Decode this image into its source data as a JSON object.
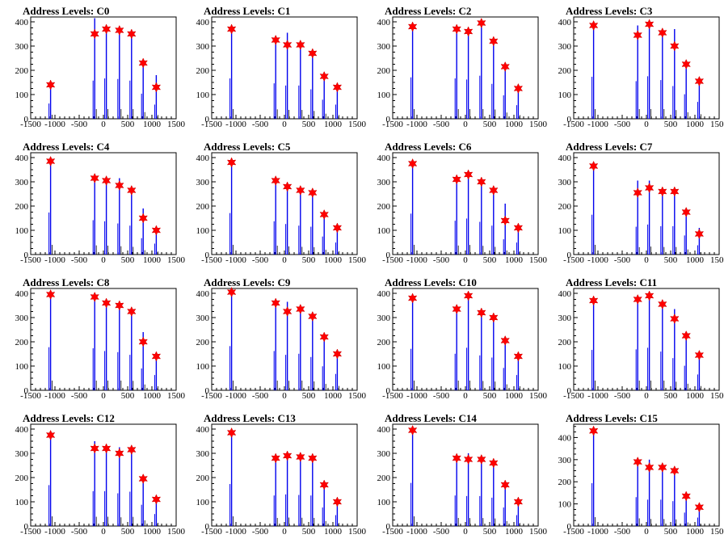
{
  "chart_data": [
    {
      "type": "line",
      "title": "Address Levels: C0",
      "xlim": [
        -1500,
        1500
      ],
      "ylim": [
        0,
        420
      ],
      "xticks": [
        "-1500",
        "-1000",
        "-500",
        "0",
        "500",
        "1000",
        "1500"
      ],
      "yticks": [
        "0",
        "100",
        "200",
        "300",
        "400"
      ],
      "peaks": [
        {
          "x": -1090,
          "y": 140,
          "height": 142
        },
        {
          "x": -180,
          "y": 350,
          "height": 415
        },
        {
          "x": 60,
          "y": 370,
          "height": 380
        },
        {
          "x": 330,
          "y": 365,
          "height": 370
        },
        {
          "x": 580,
          "y": 350,
          "height": 355
        },
        {
          "x": 820,
          "y": 230,
          "height": 240
        },
        {
          "x": 1090,
          "y": 130,
          "height": 180
        }
      ]
    },
    {
      "type": "line",
      "title": "Address Levels: C1",
      "xlim": [
        -1500,
        1500
      ],
      "ylim": [
        0,
        420
      ],
      "xticks": [
        "-1500",
        "-1000",
        "-500",
        "0",
        "500",
        "1000",
        "1500"
      ],
      "yticks": [
        "0",
        "100",
        "200",
        "300",
        "400"
      ],
      "peaks": [
        {
          "x": -1090,
          "y": 370,
          "height": 380
        },
        {
          "x": -180,
          "y": 325,
          "height": 335
        },
        {
          "x": 60,
          "y": 305,
          "height": 355
        },
        {
          "x": 330,
          "y": 305,
          "height": 315
        },
        {
          "x": 580,
          "y": 270,
          "height": 280
        },
        {
          "x": 820,
          "y": 175,
          "height": 185
        },
        {
          "x": 1090,
          "y": 130,
          "height": 140
        }
      ]
    },
    {
      "type": "line",
      "title": "Address Levels: C2",
      "xlim": [
        -1500,
        1500
      ],
      "ylim": [
        0,
        420
      ],
      "xticks": [
        "-1500",
        "-1000",
        "-500",
        "0",
        "500",
        "1000",
        "1500"
      ],
      "yticks": [
        "0",
        "100",
        "200",
        "300",
        "400"
      ],
      "peaks": [
        {
          "x": -1090,
          "y": 380,
          "height": 390
        },
        {
          "x": -180,
          "y": 370,
          "height": 380
        },
        {
          "x": 60,
          "y": 360,
          "height": 370
        },
        {
          "x": 330,
          "y": 395,
          "height": 405
        },
        {
          "x": 580,
          "y": 320,
          "height": 330
        },
        {
          "x": 820,
          "y": 215,
          "height": 225
        },
        {
          "x": 1090,
          "y": 125,
          "height": 135
        }
      ]
    },
    {
      "type": "line",
      "title": "Address Levels: C3",
      "xlim": [
        -1500,
        1500
      ],
      "ylim": [
        0,
        420
      ],
      "xticks": [
        "-1500",
        "-1000",
        "-500",
        "0",
        "500",
        "1000",
        "1500"
      ],
      "yticks": [
        "0",
        "100",
        "200",
        "300",
        "400"
      ],
      "peaks": [
        {
          "x": -1090,
          "y": 385,
          "height": 395
        },
        {
          "x": -180,
          "y": 345,
          "height": 385
        },
        {
          "x": 60,
          "y": 390,
          "height": 400
        },
        {
          "x": 330,
          "y": 355,
          "height": 365
        },
        {
          "x": 580,
          "y": 300,
          "height": 370
        },
        {
          "x": 820,
          "y": 225,
          "height": 235
        },
        {
          "x": 1090,
          "y": 155,
          "height": 165
        }
      ]
    },
    {
      "type": "line",
      "title": "Address Levels: C4",
      "xlim": [
        -1500,
        1500
      ],
      "ylim": [
        0,
        420
      ],
      "xticks": [
        "-1500",
        "-1000",
        "-500",
        "0",
        "500",
        "1000",
        "1500"
      ],
      "yticks": [
        "0",
        "100",
        "200",
        "300",
        "400"
      ],
      "peaks": [
        {
          "x": -1090,
          "y": 385,
          "height": 395
        },
        {
          "x": -180,
          "y": 315,
          "height": 325
        },
        {
          "x": 60,
          "y": 305,
          "height": 315
        },
        {
          "x": 330,
          "y": 285,
          "height": 315
        },
        {
          "x": 580,
          "y": 265,
          "height": 275
        },
        {
          "x": 820,
          "y": 150,
          "height": 190
        },
        {
          "x": 1090,
          "y": 100,
          "height": 110
        }
      ]
    },
    {
      "type": "line",
      "title": "Address Levels: C5",
      "xlim": [
        -1500,
        1500
      ],
      "ylim": [
        0,
        420
      ],
      "xticks": [
        "-1500",
        "-1000",
        "-500",
        "0",
        "500",
        "1000",
        "1500"
      ],
      "yticks": [
        "0",
        "100",
        "200",
        "300",
        "400"
      ],
      "peaks": [
        {
          "x": -1090,
          "y": 380,
          "height": 390
        },
        {
          "x": -180,
          "y": 305,
          "height": 315
        },
        {
          "x": 60,
          "y": 280,
          "height": 290
        },
        {
          "x": 330,
          "y": 265,
          "height": 275
        },
        {
          "x": 580,
          "y": 255,
          "height": 265
        },
        {
          "x": 820,
          "y": 165,
          "height": 175
        },
        {
          "x": 1090,
          "y": 110,
          "height": 120
        }
      ]
    },
    {
      "type": "line",
      "title": "Address Levels: C6",
      "xlim": [
        -1500,
        1500
      ],
      "ylim": [
        0,
        420
      ],
      "xticks": [
        "-1500",
        "-1000",
        "-500",
        "0",
        "500",
        "1000",
        "1500"
      ],
      "yticks": [
        "0",
        "100",
        "200",
        "300",
        "400"
      ],
      "peaks": [
        {
          "x": -1090,
          "y": 375,
          "height": 385
        },
        {
          "x": -180,
          "y": 310,
          "height": 320
        },
        {
          "x": 60,
          "y": 330,
          "height": 340
        },
        {
          "x": 330,
          "y": 300,
          "height": 310
        },
        {
          "x": 580,
          "y": 265,
          "height": 275
        },
        {
          "x": 820,
          "y": 140,
          "height": 210
        },
        {
          "x": 1090,
          "y": 110,
          "height": 120
        }
      ]
    },
    {
      "type": "line",
      "title": "Address Levels: C7",
      "xlim": [
        -1500,
        1500
      ],
      "ylim": [
        0,
        420
      ],
      "xticks": [
        "-1500",
        "-1000",
        "-500",
        "0",
        "500",
        "1000",
        "1500"
      ],
      "yticks": [
        "0",
        "100",
        "200",
        "300",
        "400"
      ],
      "peaks": [
        {
          "x": -1090,
          "y": 365,
          "height": 375
        },
        {
          "x": -180,
          "y": 255,
          "height": 305
        },
        {
          "x": 60,
          "y": 275,
          "height": 305
        },
        {
          "x": 330,
          "y": 260,
          "height": 270
        },
        {
          "x": 580,
          "y": 260,
          "height": 270
        },
        {
          "x": 820,
          "y": 175,
          "height": 185
        },
        {
          "x": 1090,
          "y": 85,
          "height": 110
        }
      ]
    },
    {
      "type": "line",
      "title": "Address Levels: C8",
      "xlim": [
        -1500,
        1500
      ],
      "ylim": [
        0,
        420
      ],
      "xticks": [
        "-1500",
        "-1000",
        "-500",
        "0",
        "500",
        "1000",
        "1500"
      ],
      "yticks": [
        "0",
        "100",
        "200",
        "300",
        "400"
      ],
      "peaks": [
        {
          "x": -1090,
          "y": 395,
          "height": 405
        },
        {
          "x": -180,
          "y": 385,
          "height": 395
        },
        {
          "x": 60,
          "y": 360,
          "height": 370
        },
        {
          "x": 330,
          "y": 350,
          "height": 360
        },
        {
          "x": 580,
          "y": 325,
          "height": 335
        },
        {
          "x": 820,
          "y": 200,
          "height": 240
        },
        {
          "x": 1090,
          "y": 140,
          "height": 150
        }
      ]
    },
    {
      "type": "line",
      "title": "Address Levels: C9",
      "xlim": [
        -1500,
        1500
      ],
      "ylim": [
        0,
        420
      ],
      "xticks": [
        "-1500",
        "-1000",
        "-500",
        "0",
        "500",
        "1000",
        "1500"
      ],
      "yticks": [
        "0",
        "100",
        "200",
        "300",
        "400"
      ],
      "peaks": [
        {
          "x": -1090,
          "y": 405,
          "height": 415
        },
        {
          "x": -180,
          "y": 360,
          "height": 370
        },
        {
          "x": 60,
          "y": 325,
          "height": 365
        },
        {
          "x": 330,
          "y": 335,
          "height": 345
        },
        {
          "x": 580,
          "y": 305,
          "height": 315
        },
        {
          "x": 820,
          "y": 220,
          "height": 230
        },
        {
          "x": 1090,
          "y": 150,
          "height": 160
        }
      ]
    },
    {
      "type": "line",
      "title": "Address Levels: C10",
      "xlim": [
        -1500,
        1500
      ],
      "ylim": [
        0,
        420
      ],
      "xticks": [
        "-1500",
        "-1000",
        "-500",
        "0",
        "500",
        "1000",
        "1500"
      ],
      "yticks": [
        "0",
        "100",
        "200",
        "300",
        "400"
      ],
      "peaks": [
        {
          "x": -1090,
          "y": 380,
          "height": 390
        },
        {
          "x": -180,
          "y": 335,
          "height": 345
        },
        {
          "x": 60,
          "y": 390,
          "height": 400
        },
        {
          "x": 330,
          "y": 320,
          "height": 330
        },
        {
          "x": 580,
          "y": 300,
          "height": 310
        },
        {
          "x": 820,
          "y": 205,
          "height": 215
        },
        {
          "x": 1090,
          "y": 140,
          "height": 150
        }
      ]
    },
    {
      "type": "line",
      "title": "Address Levels: C11",
      "xlim": [
        -1500,
        1500
      ],
      "ylim": [
        0,
        420
      ],
      "xticks": [
        "-1500",
        "-1000",
        "-500",
        "0",
        "500",
        "1000",
        "1500"
      ],
      "yticks": [
        "0",
        "100",
        "200",
        "300",
        "400"
      ],
      "peaks": [
        {
          "x": -1090,
          "y": 370,
          "height": 380
        },
        {
          "x": -180,
          "y": 375,
          "height": 385
        },
        {
          "x": 60,
          "y": 390,
          "height": 400
        },
        {
          "x": 330,
          "y": 355,
          "height": 365
        },
        {
          "x": 580,
          "y": 295,
          "height": 335
        },
        {
          "x": 820,
          "y": 225,
          "height": 235
        },
        {
          "x": 1090,
          "y": 145,
          "height": 155
        }
      ]
    },
    {
      "type": "line",
      "title": "Address Levels: C12",
      "xlim": [
        -1500,
        1500
      ],
      "ylim": [
        0,
        420
      ],
      "xticks": [
        "-1500",
        "-1000",
        "-500",
        "0",
        "500",
        "1000",
        "1500"
      ],
      "yticks": [
        "0",
        "100",
        "200",
        "300",
        "400"
      ],
      "peaks": [
        {
          "x": -1090,
          "y": 375,
          "height": 385
        },
        {
          "x": -180,
          "y": 320,
          "height": 350
        },
        {
          "x": 60,
          "y": 320,
          "height": 330
        },
        {
          "x": 330,
          "y": 300,
          "height": 325
        },
        {
          "x": 580,
          "y": 315,
          "height": 325
        },
        {
          "x": 820,
          "y": 195,
          "height": 205
        },
        {
          "x": 1090,
          "y": 110,
          "height": 120
        }
      ]
    },
    {
      "type": "line",
      "title": "Address Levels: C13",
      "xlim": [
        -1500,
        1500
      ],
      "ylim": [
        0,
        420
      ],
      "xticks": [
        "-1500",
        "-1000",
        "-500",
        "0",
        "500",
        "1000",
        "1500"
      ],
      "yticks": [
        "0",
        "100",
        "200",
        "300",
        "400"
      ],
      "peaks": [
        {
          "x": -1090,
          "y": 385,
          "height": 395
        },
        {
          "x": -180,
          "y": 280,
          "height": 290
        },
        {
          "x": 60,
          "y": 290,
          "height": 300
        },
        {
          "x": 330,
          "y": 285,
          "height": 295
        },
        {
          "x": 580,
          "y": 280,
          "height": 290
        },
        {
          "x": 820,
          "y": 170,
          "height": 180
        },
        {
          "x": 1090,
          "y": 100,
          "height": 110
        }
      ]
    },
    {
      "type": "line",
      "title": "Address Levels: C14",
      "xlim": [
        -1500,
        1500
      ],
      "ylim": [
        0,
        420
      ],
      "xticks": [
        "-1500",
        "-1000",
        "-500",
        "0",
        "500",
        "1000",
        "1500"
      ],
      "yticks": [
        "0",
        "100",
        "200",
        "300",
        "400"
      ],
      "peaks": [
        {
          "x": -1090,
          "y": 395,
          "height": 405
        },
        {
          "x": -180,
          "y": 280,
          "height": 290
        },
        {
          "x": 60,
          "y": 275,
          "height": 300
        },
        {
          "x": 330,
          "y": 275,
          "height": 285
        },
        {
          "x": 580,
          "y": 260,
          "height": 270
        },
        {
          "x": 820,
          "y": 170,
          "height": 180
        },
        {
          "x": 1090,
          "y": 100,
          "height": 110
        }
      ]
    },
    {
      "type": "line",
      "title": "Address Levels: C15",
      "xlim": [
        -1500,
        1500
      ],
      "ylim": [
        0,
        460
      ],
      "xticks": [
        "-1500",
        "-1000",
        "-500",
        "0",
        "500",
        "1000",
        "1500"
      ],
      "yticks": [
        "0",
        "100",
        "200",
        "300",
        "400"
      ],
      "peaks": [
        {
          "x": -1090,
          "y": 430,
          "height": 440
        },
        {
          "x": -180,
          "y": 290,
          "height": 300
        },
        {
          "x": 60,
          "y": 265,
          "height": 300
        },
        {
          "x": 330,
          "y": 265,
          "height": 275
        },
        {
          "x": 580,
          "y": 250,
          "height": 260
        },
        {
          "x": 820,
          "y": 135,
          "height": 145
        },
        {
          "x": 1090,
          "y": 85,
          "height": 95
        }
      ]
    }
  ],
  "colors": {
    "trace": "#0000ee",
    "marker": "#ff0000",
    "axis": "#000000"
  }
}
